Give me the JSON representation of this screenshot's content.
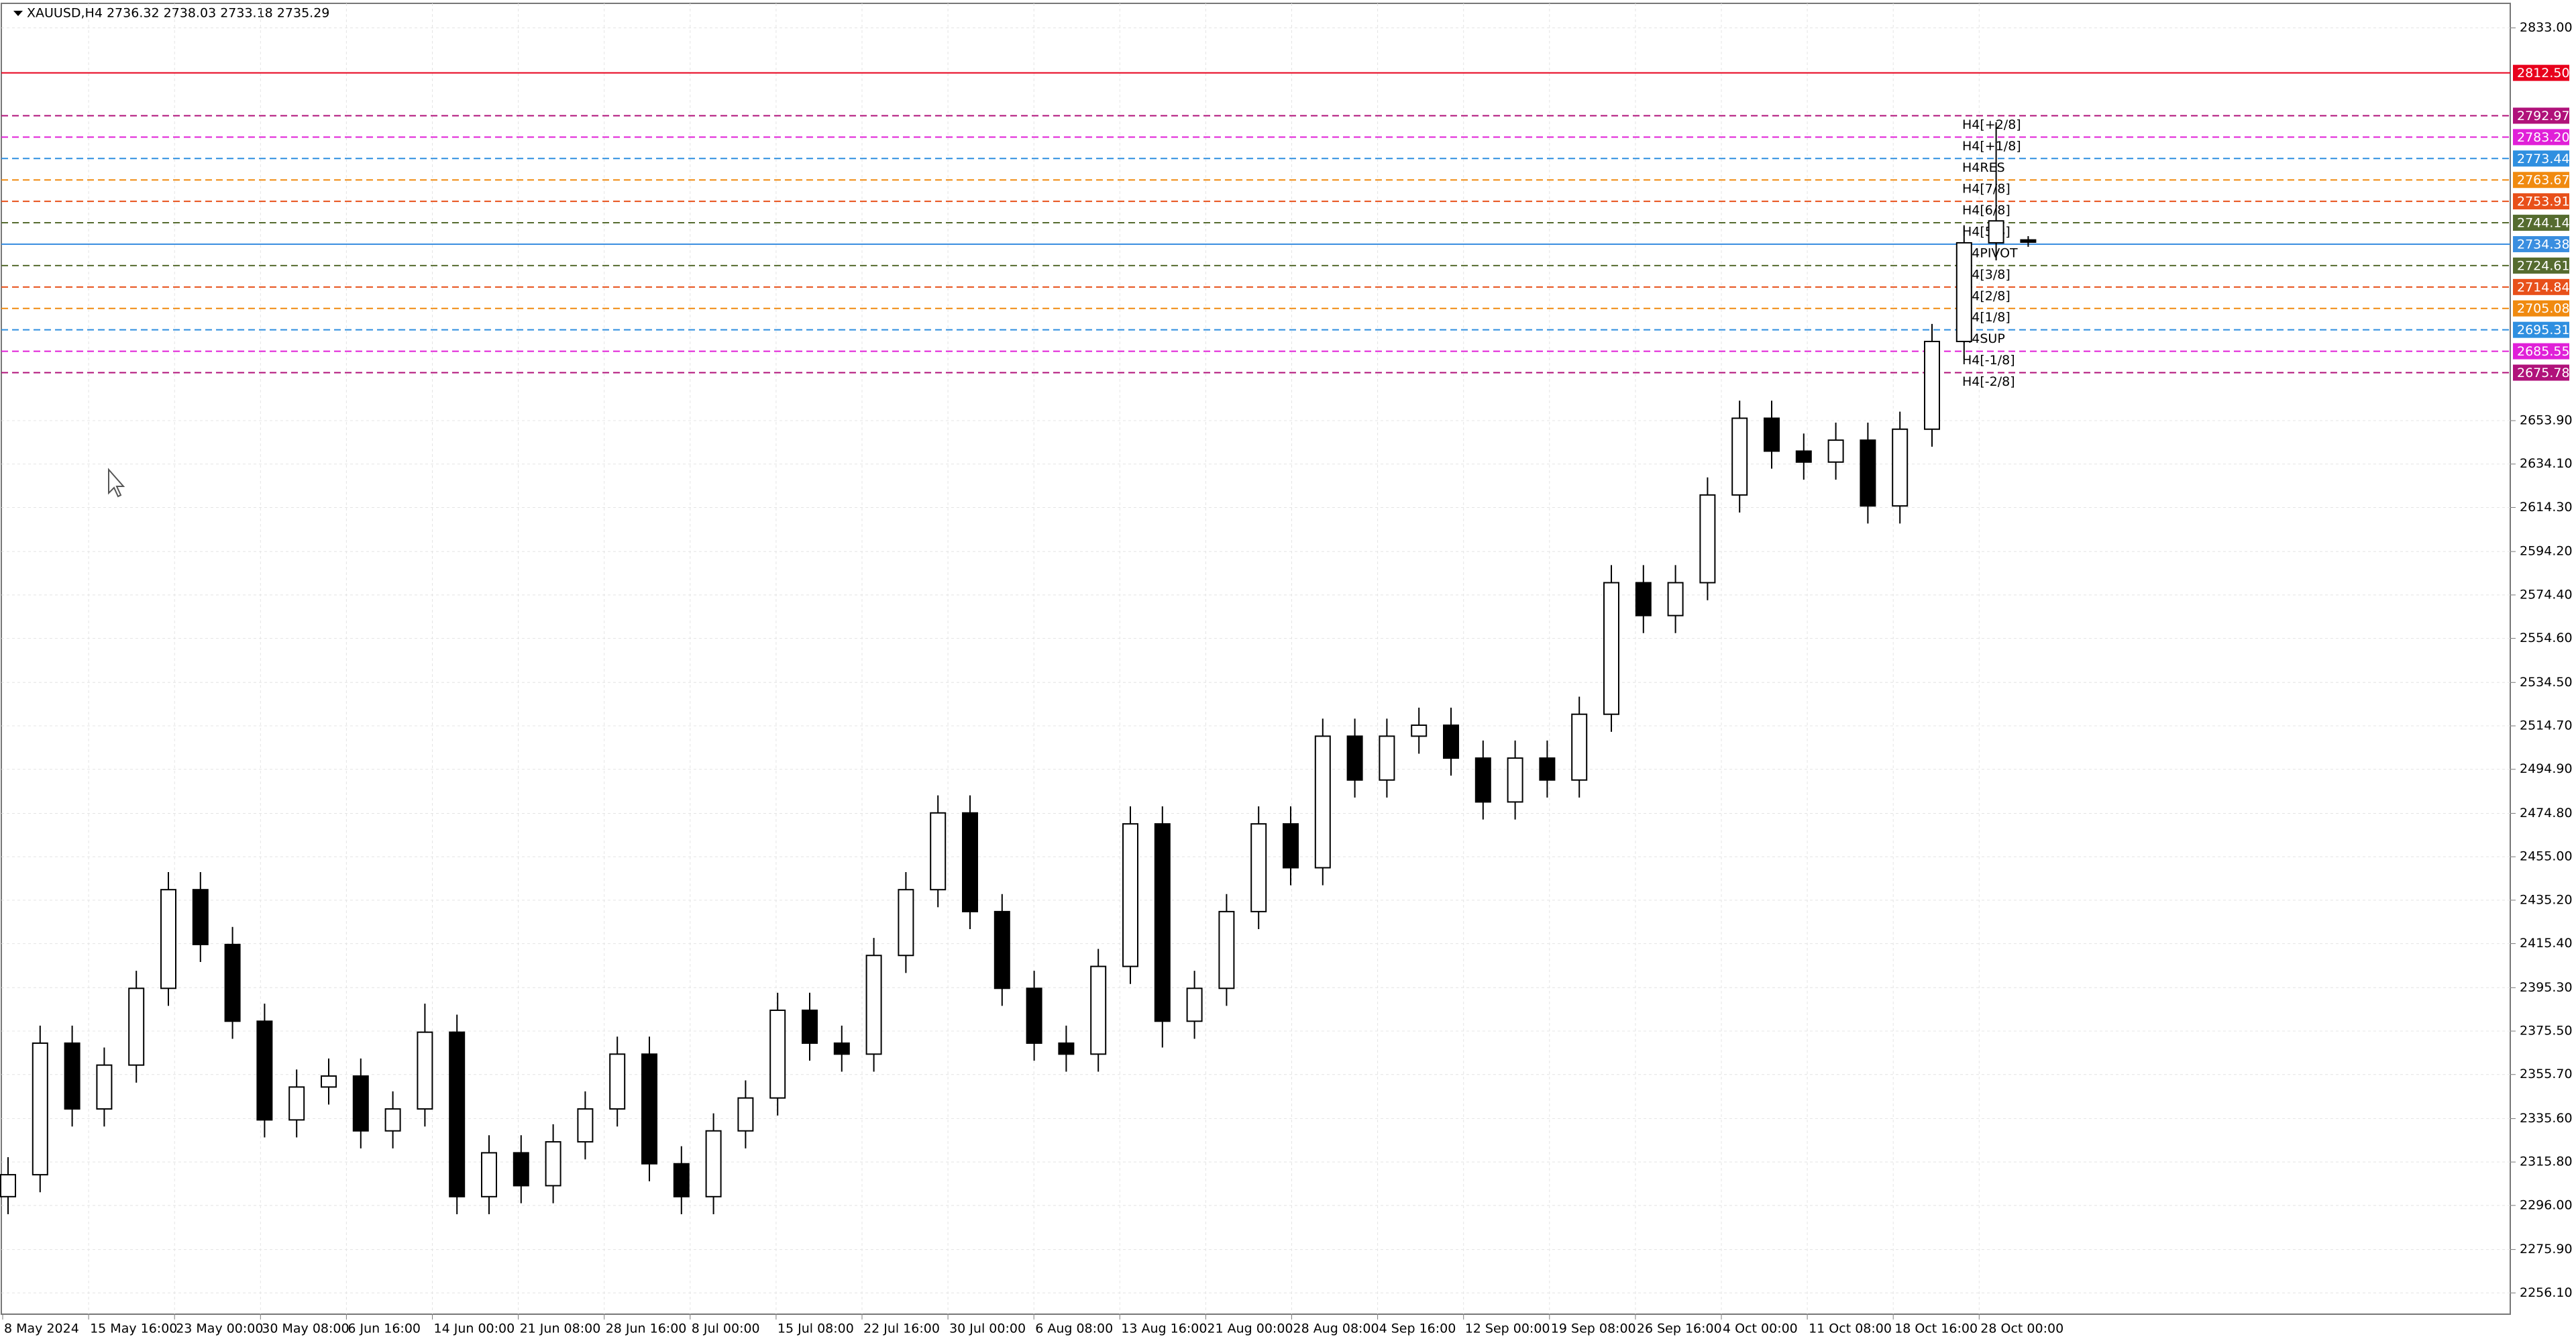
{
  "chart_data": {
    "type": "candlestick",
    "title": "XAUUSD,H4  2736.32 2738.03 2733.18 2735.29",
    "grid": true,
    "colors": {
      "up_fill": "#ffffff",
      "down_fill": "#000000",
      "outline": "#000000"
    },
    "ylim": [
      2246.4,
      2844.2
    ],
    "yticks": [
      {
        "value": 2833.0,
        "label": "2833.00"
      },
      {
        "value": 2653.9,
        "label": "2653.90"
      },
      {
        "value": 2634.1,
        "label": "2634.10"
      },
      {
        "value": 2614.3,
        "label": "2614.30"
      },
      {
        "value": 2594.2,
        "label": "2594.20"
      },
      {
        "value": 2574.4,
        "label": "2574.40"
      },
      {
        "value": 2554.6,
        "label": "2554.60"
      },
      {
        "value": 2534.5,
        "label": "2534.50"
      },
      {
        "value": 2514.7,
        "label": "2514.70"
      },
      {
        "value": 2494.9,
        "label": "2494.90"
      },
      {
        "value": 2474.8,
        "label": "2474.80"
      },
      {
        "value": 2455.0,
        "label": "2455.00"
      },
      {
        "value": 2435.2,
        "label": "2435.20"
      },
      {
        "value": 2415.4,
        "label": "2415.40"
      },
      {
        "value": 2395.3,
        "label": "2395.30"
      },
      {
        "value": 2375.5,
        "label": "2375.50"
      },
      {
        "value": 2355.7,
        "label": "2355.70"
      },
      {
        "value": 2335.6,
        "label": "2335.60"
      },
      {
        "value": 2315.8,
        "label": "2315.80"
      },
      {
        "value": 2296.0,
        "label": "2296.00"
      },
      {
        "value": 2275.9,
        "label": "2275.90"
      },
      {
        "value": 2256.1,
        "label": "2256.10"
      }
    ],
    "categories": [
      "8 May 2024",
      "15 May 16:00",
      "23 May 00:00",
      "30 May 08:00",
      "6 Jun 16:00",
      "14 Jun 00:00",
      "21 Jun 08:00",
      "28 Jun 16:00",
      "8 Jul 00:00",
      "15 Jul 08:00",
      "22 Jul 16:00",
      "30 Jul 00:00",
      "6 Aug 08:00",
      "13 Aug 16:00",
      "21 Aug 00:00",
      "28 Aug 08:00",
      "4 Sep 16:00",
      "12 Sep 00:00",
      "19 Sep 08:00",
      "26 Sep 16:00",
      "4 Oct 00:00",
      "11 Oct 08:00",
      "18 Oct 16:00",
      "28 Oct 00:00"
    ],
    "open": [
      2300,
      2310,
      2370,
      2340,
      2360,
      2395,
      2440,
      2415,
      2380,
      2335,
      2350,
      2355,
      2330,
      2340,
      2375,
      2300,
      2320,
      2305,
      2325,
      2340,
      2365,
      2315,
      2300,
      2330,
      2345,
      2385,
      2370,
      2365,
      2410,
      2440,
      2475,
      2430,
      2395,
      2370,
      2365,
      2405,
      2470,
      2380,
      2395,
      2430,
      2470,
      2450,
      2510,
      2490,
      2510,
      2515,
      2500,
      2480,
      2500,
      2490,
      2520,
      2580,
      2565,
      2580,
      2620,
      2655,
      2640,
      2635,
      2645,
      2615,
      2650,
      2690,
      2735,
      2736.32
    ],
    "high": [
      2318,
      2378,
      2378,
      2368,
      2403,
      2448,
      2448,
      2423,
      2388,
      2358,
      2363,
      2363,
      2348,
      2388,
      2383,
      2328,
      2328,
      2333,
      2348,
      2373,
      2373,
      2323,
      2338,
      2353,
      2393,
      2393,
      2378,
      2418,
      2448,
      2483,
      2483,
      2438,
      2403,
      2378,
      2413,
      2478,
      2478,
      2403,
      2438,
      2478,
      2478,
      2518,
      2518,
      2518,
      2523,
      2523,
      2508,
      2508,
      2508,
      2528,
      2588,
      2588,
      2588,
      2628,
      2663,
      2663,
      2648,
      2653,
      2653,
      2658,
      2698,
      2743,
      2790,
      2738.03
    ],
    "low": [
      2292,
      2302,
      2332,
      2332,
      2352,
      2387,
      2407,
      2372,
      2327,
      2327,
      2342,
      2322,
      2322,
      2332,
      2292,
      2292,
      2297,
      2297,
      2317,
      2332,
      2307,
      2292,
      2292,
      2322,
      2337,
      2362,
      2357,
      2357,
      2402,
      2432,
      2422,
      2387,
      2362,
      2357,
      2357,
      2397,
      2368,
      2372,
      2387,
      2422,
      2442,
      2442,
      2482,
      2482,
      2502,
      2492,
      2472,
      2472,
      2482,
      2482,
      2512,
      2557,
      2557,
      2572,
      2612,
      2632,
      2627,
      2627,
      2607,
      2607,
      2642,
      2682,
      2727,
      2733.18
    ],
    "close": [
      2310,
      2370,
      2340,
      2360,
      2395,
      2440,
      2415,
      2380,
      2335,
      2350,
      2355,
      2330,
      2340,
      2375,
      2300,
      2320,
      2305,
      2325,
      2340,
      2365,
      2315,
      2300,
      2330,
      2345,
      2385,
      2370,
      2365,
      2410,
      2440,
      2475,
      2430,
      2395,
      2370,
      2365,
      2405,
      2470,
      2380,
      2395,
      2430,
      2470,
      2450,
      2510,
      2490,
      2510,
      2515,
      2500,
      2480,
      2500,
      2490,
      2520,
      2580,
      2565,
      2580,
      2620,
      2655,
      2640,
      2635,
      2645,
      2615,
      2650,
      2690,
      2735,
      2745,
      2735.29
    ],
    "levels": [
      {
        "price": {
          "value": 2812.5,
          "label": "2812.50"
        },
        "color": "#e8001c",
        "dashed": false
      },
      {
        "price": {
          "value": 2792.97,
          "label": "2792.97"
        },
        "name": "H4[+2/8]",
        "color": "#b0127a",
        "dashed": true
      },
      {
        "price": {
          "value": 2783.2,
          "label": "2783.20"
        },
        "name": "H4[+1/8]",
        "color": "#e020d8",
        "dashed": true
      },
      {
        "price": {
          "value": 2773.44,
          "label": "2773.44"
        },
        "name": "H4RES",
        "color": "#2f8fe0",
        "dashed": true
      },
      {
        "price": {
          "value": 2763.67,
          "label": "2763.67"
        },
        "name": "H4[7/8]",
        "color": "#f08a10",
        "dashed": true
      },
      {
        "price": {
          "value": 2753.91,
          "label": "2753.91"
        },
        "name": "H4[6/8]",
        "color": "#e8501a",
        "dashed": true
      },
      {
        "price": {
          "value": 2744.14,
          "label": "2744.14"
        },
        "name": "H4[5/8]",
        "color": "#556b2f",
        "dashed": true
      },
      {
        "price": {
          "value": 2734.38,
          "label": "2734.38"
        },
        "name": "H4PIVOT",
        "color": "#3a8ee0",
        "dashed": false
      },
      {
        "price": {
          "value": 2724.61,
          "label": "2724.61"
        },
        "name": "H4[3/8]",
        "color": "#556b2f",
        "dashed": true
      },
      {
        "price": {
          "value": 2714.84,
          "label": "2714.84"
        },
        "name": "H4[2/8]",
        "color": "#e8501a",
        "dashed": true
      },
      {
        "price": {
          "value": 2705.08,
          "label": "2705.08"
        },
        "name": "H4[1/8]",
        "color": "#f08a10",
        "dashed": true
      },
      {
        "price": {
          "value": 2695.31,
          "label": "2695.31"
        },
        "name": "H4SUP",
        "color": "#2f8fe0",
        "dashed": true
      },
      {
        "price": {
          "value": 2685.55,
          "label": "2685.55"
        },
        "name": "H4[-1/8]",
        "color": "#e020d8",
        "dashed": true
      },
      {
        "price": {
          "value": 2675.78,
          "label": "2675.78"
        },
        "name": "H4[-2/8]",
        "color": "#b0127a",
        "dashed": true
      }
    ]
  }
}
